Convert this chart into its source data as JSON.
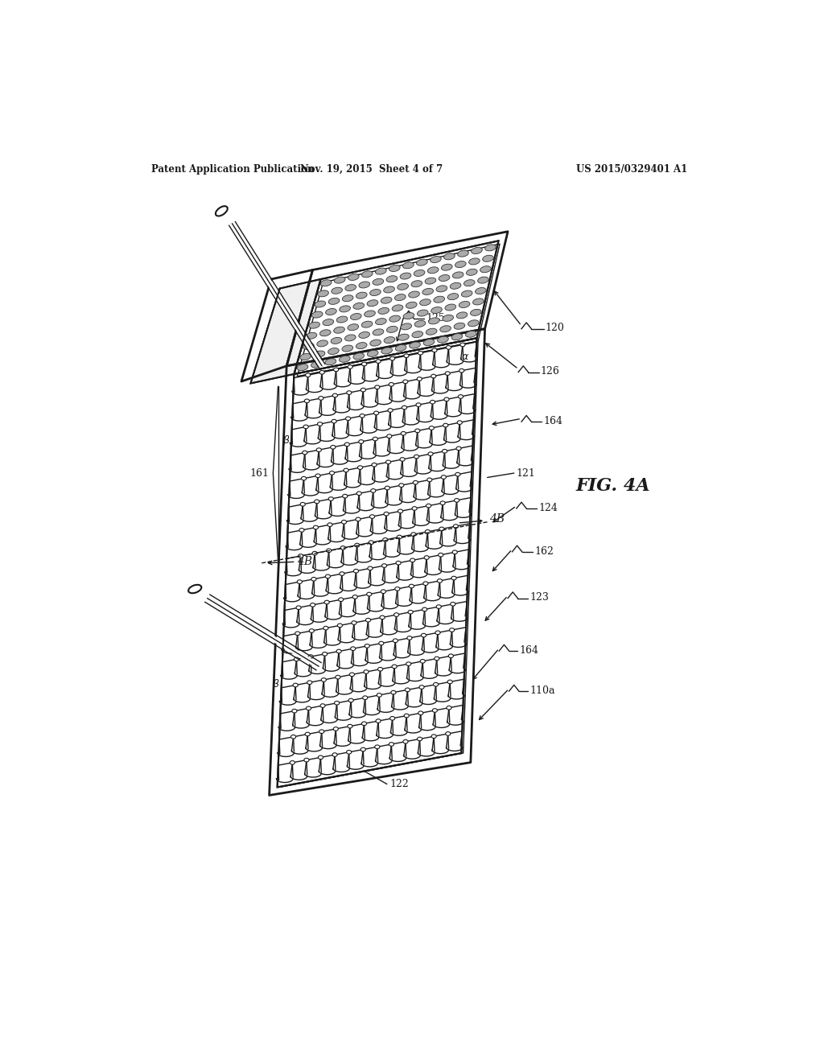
{
  "header_left": "Patent Application Publication",
  "header_mid": "Nov. 19, 2015  Sheet 4 of 7",
  "header_right": "US 2015/0329401 A1",
  "fig_label": "FIG. 4A",
  "bg_color": "#ffffff",
  "line_color": "#1a1a1a"
}
